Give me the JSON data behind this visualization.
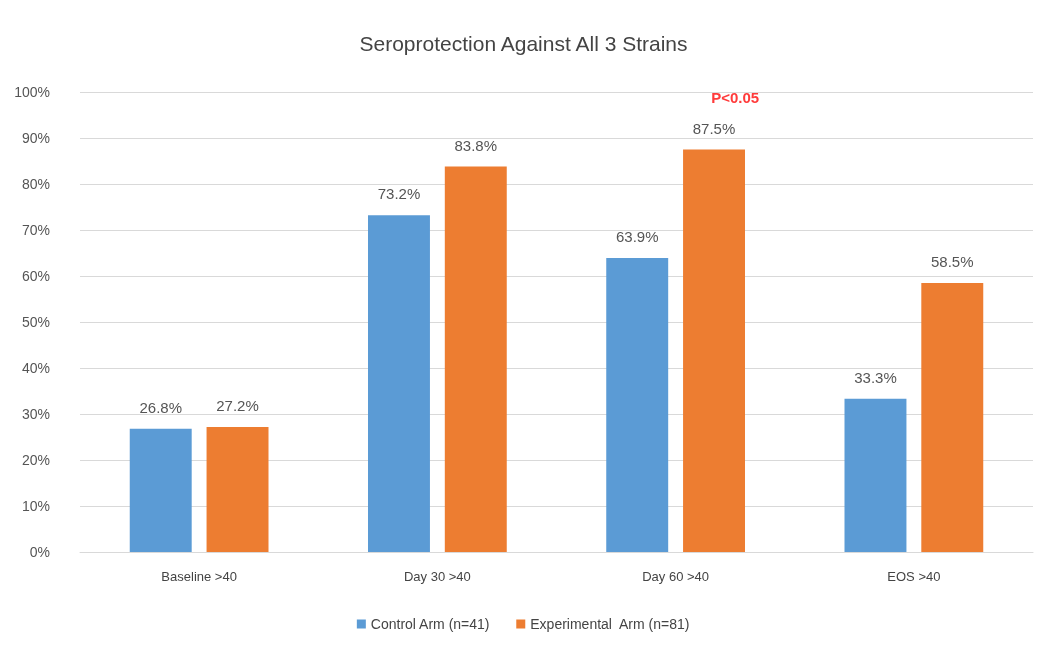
{
  "chart_data": {
    "type": "bar",
    "title": "Seroprotection Against All 3 Strains",
    "categories": [
      "Baseline >40",
      "Day 30 >40",
      "Day 60 >40",
      "EOS >40"
    ],
    "series": [
      {
        "name": "Control Arm (n=41)",
        "color": "#5b9bd5",
        "values": [
          26.8,
          73.2,
          63.9,
          33.3
        ],
        "value_labels": [
          "26.8%",
          "73.2%",
          "63.9%",
          "33.3%"
        ]
      },
      {
        "name": "Experimental  Arm (n=81)",
        "color": "#ed7d31",
        "values": [
          27.2,
          83.8,
          87.5,
          58.5
        ],
        "value_labels": [
          "27.2%",
          "83.8%",
          "87.5%",
          "58.5%"
        ]
      }
    ],
    "ylim": [
      0,
      100
    ],
    "yticks": [
      {
        "value": 0,
        "label": "0%"
      },
      {
        "value": 10,
        "label": "10%"
      },
      {
        "value": 20,
        "label": "20%"
      },
      {
        "value": 30,
        "label": "30%"
      },
      {
        "value": 40,
        "label": "40%"
      },
      {
        "value": 50,
        "label": "50%"
      },
      {
        "value": 60,
        "label": "60%"
      },
      {
        "value": 70,
        "label": "70%"
      },
      {
        "value": 80,
        "label": "80%"
      },
      {
        "value": 90,
        "label": "90%"
      },
      {
        "value": 100,
        "label": "100%"
      }
    ],
    "annotations": [
      "P<0.05"
    ],
    "grid": "y",
    "legend": "bottom"
  }
}
